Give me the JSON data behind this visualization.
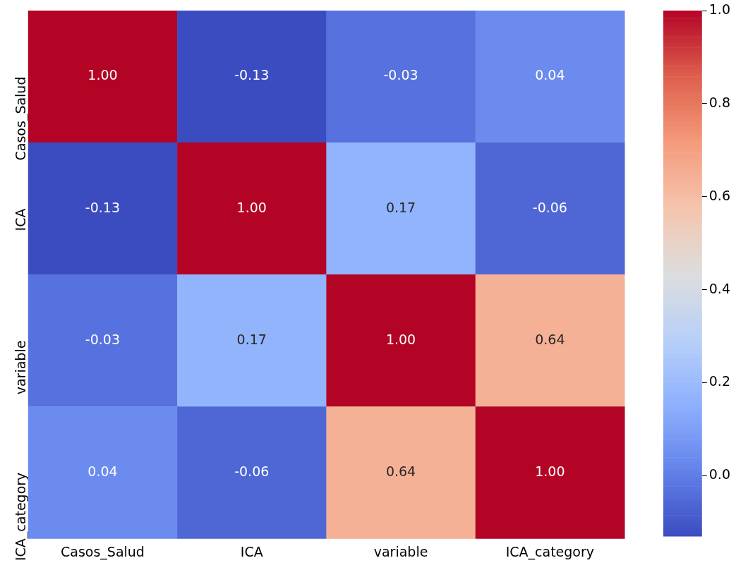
{
  "chart_data": {
    "type": "heatmap",
    "categories": [
      "Casos_Salud",
      "ICA",
      "variable",
      "ICA_category"
    ],
    "y_categories": [
      "Casos_Salud",
      "ICA",
      "variable",
      "ICA_category"
    ],
    "cells": [
      [
        1,
        -0.13,
        -0.03,
        0.04
      ],
      [
        -0.13,
        1,
        0.17,
        -0.06
      ],
      [
        -0.03,
        0.17,
        1,
        0.64
      ],
      [
        0.04,
        -0.06,
        0.64,
        1
      ]
    ],
    "cell_labels": [
      [
        "1.00",
        "-0.13",
        "-0.03",
        "0.04"
      ],
      [
        "-0.13",
        "1.00",
        "0.17",
        "-0.06"
      ],
      [
        "-0.03",
        "0.17",
        "1.00",
        "0.64"
      ],
      [
        "0.04",
        "-0.06",
        "0.64",
        "1.00"
      ]
    ],
    "clim": [
      -0.13,
      1
    ],
    "cticks": [
      {
        "value": 0,
        "label": "0.0"
      },
      {
        "value": 0.2,
        "label": "0.2"
      },
      {
        "value": 0.4,
        "label": "0.4"
      },
      {
        "value": 0.6,
        "label": "0.6"
      },
      {
        "value": 0.8,
        "label": "0.8"
      },
      {
        "value": 1,
        "label": "1.0"
      }
    ]
  }
}
